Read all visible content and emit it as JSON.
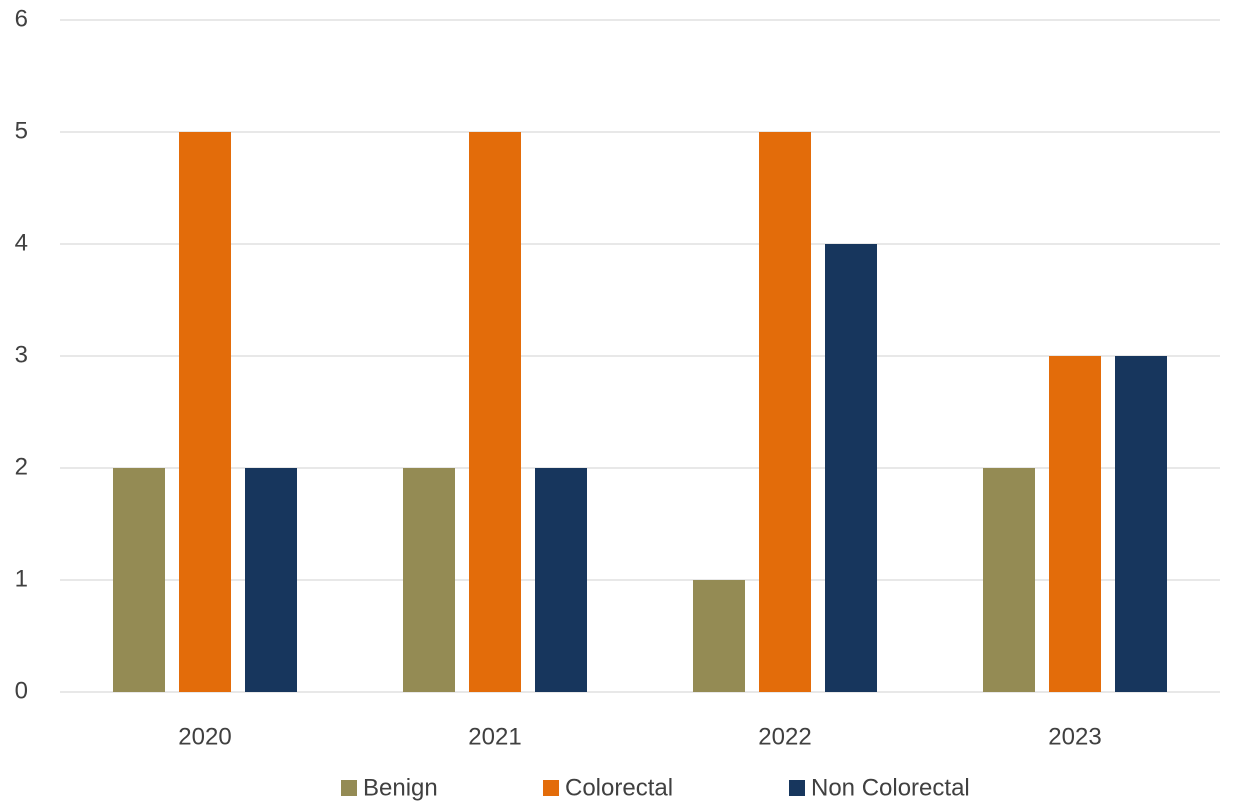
{
  "chart_data": {
    "type": "bar",
    "title": "",
    "xlabel": "",
    "ylabel": "",
    "categories": [
      "2020",
      "2021",
      "2022",
      "2023"
    ],
    "series": [
      {
        "name": "Benign",
        "values": [
          2,
          2,
          1,
          2
        ],
        "color": "#948b54"
      },
      {
        "name": "Colorectal",
        "values": [
          5,
          5,
          5,
          3
        ],
        "color": "#e36c0a"
      },
      {
        "name": "Non Colorectal",
        "values": [
          2,
          2,
          4,
          3
        ],
        "color": "#17365d"
      }
    ],
    "ylim": [
      0,
      6
    ],
    "yticks": [
      "0",
      "1",
      "2",
      "3",
      "4",
      "5",
      "6"
    ],
    "grid": true,
    "legend_position": "bottom"
  }
}
